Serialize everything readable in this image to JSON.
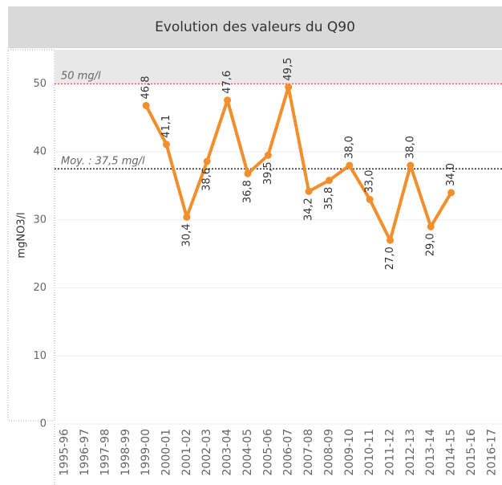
{
  "chart_data": {
    "type": "line",
    "title": "Evolution des valeurs du Q90",
    "y_label": "mgNO3/l",
    "categories": [
      "1995-96",
      "1996-97",
      "1997-98",
      "1998-99",
      "1999-00",
      "2000-01",
      "2001-02",
      "2002-03",
      "2003-04",
      "2004-05",
      "2005-06",
      "2006-07",
      "2007-08",
      "2008-09",
      "2009-10",
      "2010-11",
      "2011-12",
      "2012-13",
      "2013-14",
      "2014-15",
      "2015-16",
      "2016-17"
    ],
    "series": [
      {
        "name": "Q90",
        "color": "#f28e2b",
        "values": [
          null,
          null,
          null,
          null,
          46.8,
          41.1,
          30.4,
          38.6,
          47.6,
          36.8,
          39.5,
          49.5,
          34.2,
          35.8,
          38.0,
          33.0,
          27.0,
          38.0,
          29.0,
          34.0,
          null,
          null
        ],
        "value_labels": [
          null,
          null,
          null,
          null,
          "46,8",
          "41,1",
          "30,4",
          "38,6",
          "47,6",
          "36,8",
          "39,5",
          "49,5",
          "34,2",
          "35,8",
          "38,0",
          "33,0",
          "27,0",
          "38,0",
          "29,0",
          "34,0",
          null,
          null
        ]
      }
    ],
    "ylim": [
      0,
      55
    ],
    "yticks": [
      0,
      10,
      20,
      30,
      40,
      50
    ],
    "grid": true,
    "reference_lines": [
      {
        "value": 50,
        "label": "50 mg/l",
        "color": "#e15759"
      },
      {
        "value": 37.5,
        "label": "Moy. : 37,5 mg/l",
        "color": "#000000"
      }
    ]
  }
}
